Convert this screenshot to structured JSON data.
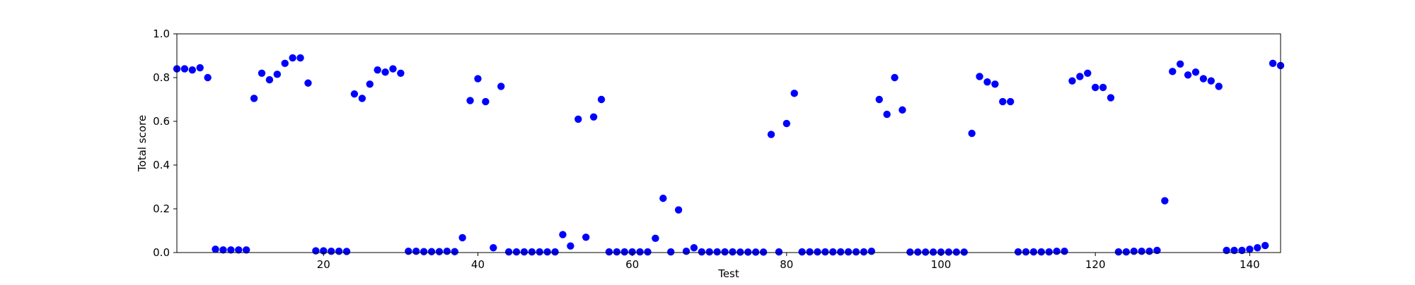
{
  "chart_data": {
    "type": "scatter",
    "title": "",
    "xlabel": "Test",
    "ylabel": "Total score",
    "xlim": [
      1,
      144
    ],
    "ylim": [
      0.0,
      1.0
    ],
    "xticks": [
      20,
      40,
      60,
      80,
      100,
      120,
      140
    ],
    "xtick_labels": [
      "20",
      "40",
      "60",
      "80",
      "100",
      "120",
      "140"
    ],
    "yticks": [
      0.0,
      0.2,
      0.4,
      0.6,
      0.8,
      1.0
    ],
    "ytick_labels": [
      "0.0",
      "0.2",
      "0.4",
      "0.6",
      "0.8",
      "1.0"
    ],
    "grid": false,
    "marker_color": "#0000ff",
    "series": [
      {
        "x": [
          1,
          2,
          3,
          4,
          5,
          6,
          7,
          8,
          9,
          10,
          11,
          12,
          13,
          14,
          15,
          16,
          17,
          18,
          19,
          20,
          21,
          22,
          23,
          24,
          25,
          26,
          27,
          28,
          29,
          30,
          31,
          32,
          33,
          34,
          35,
          36,
          37,
          38,
          39,
          40,
          41,
          42,
          43,
          44,
          45,
          46,
          47,
          48,
          49,
          50,
          51,
          52,
          53,
          54,
          55,
          56,
          57,
          58,
          59,
          60,
          61,
          62,
          63,
          64,
          65,
          66,
          67,
          68,
          69,
          70,
          71,
          72,
          73,
          74,
          75,
          76,
          77,
          78,
          79,
          80,
          81,
          82,
          83,
          84,
          85,
          86,
          87,
          88,
          89,
          90,
          91,
          92,
          93,
          94,
          95,
          96,
          97,
          98,
          99,
          100,
          101,
          102,
          103,
          104,
          105,
          106,
          107,
          108,
          109,
          110,
          111,
          112,
          113,
          114,
          115,
          116,
          117,
          118,
          119,
          120,
          121,
          122,
          123,
          124,
          125,
          126,
          127,
          128,
          129,
          130,
          131,
          132,
          133,
          134,
          135,
          136,
          137,
          138,
          139,
          140,
          141,
          142,
          143,
          144
        ],
        "y": [
          0.84,
          0.84,
          0.835,
          0.845,
          0.8,
          0.015,
          0.012,
          0.012,
          0.012,
          0.012,
          0.705,
          0.82,
          0.79,
          0.815,
          0.865,
          0.89,
          0.89,
          0.775,
          0.008,
          0.008,
          0.006,
          0.006,
          0.005,
          0.725,
          0.705,
          0.77,
          0.835,
          0.825,
          0.84,
          0.82,
          0.006,
          0.006,
          0.004,
          0.004,
          0.004,
          0.006,
          0.004,
          0.068,
          0.695,
          0.795,
          0.69,
          0.022,
          0.76,
          0.003,
          0.003,
          0.003,
          0.003,
          0.003,
          0.003,
          0.003,
          0.082,
          0.03,
          0.61,
          0.07,
          0.62,
          0.7,
          0.003,
          0.003,
          0.003,
          0.003,
          0.003,
          0.003,
          0.065,
          0.248,
          0.003,
          0.195,
          0.006,
          0.022,
          0.003,
          0.003,
          0.003,
          0.003,
          0.003,
          0.002,
          0.002,
          0.002,
          0.002,
          0.54,
          0.003,
          0.59,
          0.728,
          0.003,
          0.003,
          0.003,
          0.003,
          0.003,
          0.003,
          0.003,
          0.003,
          0.003,
          0.006,
          0.7,
          0.632,
          0.8,
          0.652,
          0.002,
          0.002,
          0.002,
          0.002,
          0.002,
          0.002,
          0.002,
          0.002,
          0.545,
          0.805,
          0.78,
          0.77,
          0.69,
          0.69,
          0.003,
          0.003,
          0.003,
          0.003,
          0.003,
          0.006,
          0.006,
          0.785,
          0.805,
          0.82,
          0.755,
          0.755,
          0.708,
          0.003,
          0.003,
          0.006,
          0.006,
          0.006,
          0.01,
          0.237,
          0.828,
          0.862,
          0.812,
          0.825,
          0.795,
          0.785,
          0.76,
          0.01,
          0.01,
          0.01,
          0.015,
          0.022,
          0.032,
          0.865,
          0.855
        ]
      }
    ]
  }
}
